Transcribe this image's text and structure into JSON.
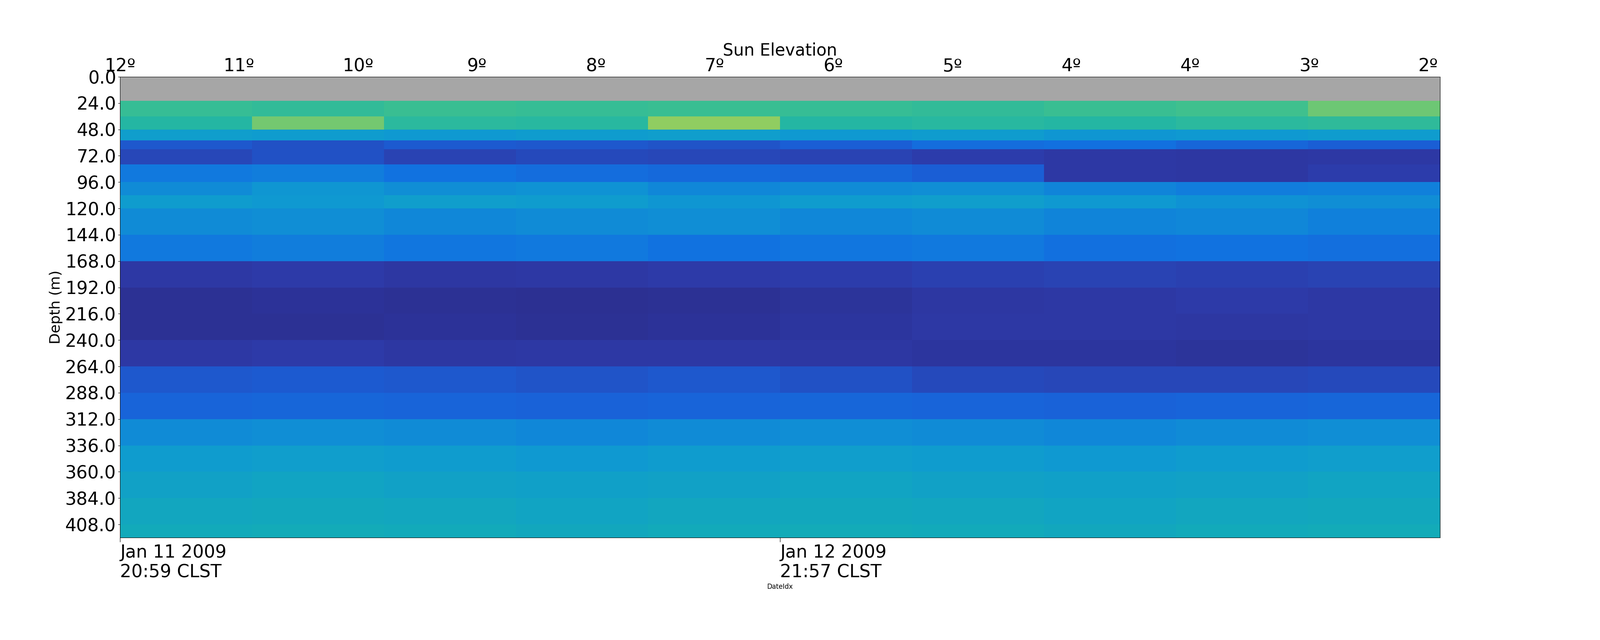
{
  "chart_data": {
    "type": "heatmap",
    "xlabel": "DateIdx",
    "ylabel": "Depth (m)",
    "top_xlabel": "Sun Elevation",
    "xlim": [
      0,
      1110
    ],
    "ylim": [
      420,
      0
    ],
    "xticks": [
      {
        "value": 0,
        "label": "Jan 11 2009\n20:59 CLST"
      },
      {
        "value": 555,
        "label": "Jan 12 2009\n21:57 CLST"
      }
    ],
    "top_xticks": [
      {
        "value": 0,
        "label": "12º"
      },
      {
        "value": 100,
        "label": "11º"
      },
      {
        "value": 200,
        "label": "10º"
      },
      {
        "value": 300,
        "label": "9º"
      },
      {
        "value": 400,
        "label": "8º"
      },
      {
        "value": 500,
        "label": "7º"
      },
      {
        "value": 600,
        "label": "6º"
      },
      {
        "value": 700,
        "label": "5º"
      },
      {
        "value": 800,
        "label": "4º"
      },
      {
        "value": 900,
        "label": "4º"
      },
      {
        "value": 1000,
        "label": "3º"
      },
      {
        "value": 1100,
        "label": "2º"
      }
    ],
    "yticks": [
      0.0,
      24.0,
      48.0,
      72.0,
      96.0,
      120.0,
      144.0,
      168.0,
      192.0,
      216.0,
      240.0,
      264.0,
      288.0,
      312.0,
      336.0,
      360.0,
      384.0,
      408.0
    ],
    "x_edges": [
      0,
      111,
      222,
      333,
      444,
      555,
      666,
      777,
      888,
      999,
      1110
    ],
    "y_edges": [
      0,
      22,
      36,
      48,
      58,
      66,
      80,
      96,
      108,
      120,
      144,
      168,
      192,
      216,
      240,
      264,
      288,
      312,
      336,
      360,
      384,
      408,
      420
    ],
    "color_range": [
      0,
      10
    ],
    "cells": [
      [
        null,
        null,
        null,
        null,
        null,
        null,
        null,
        null,
        null,
        null
      ],
      [
        6.5,
        6.4,
        6.6,
        6.5,
        6.6,
        6.5,
        6.4,
        6.6,
        6.7,
        7.2
      ],
      [
        6.0,
        7.3,
        6.2,
        6.1,
        7.6,
        6.0,
        6.1,
        6.0,
        6.2,
        6.3
      ],
      [
        4.6,
        4.5,
        4.4,
        4.5,
        4.6,
        4.4,
        4.5,
        4.3,
        4.4,
        4.5
      ],
      [
        2.0,
        1.8,
        2.1,
        2.0,
        1.9,
        2.2,
        3.0,
        3.2,
        2.6,
        2.2
      ],
      [
        1.5,
        1.8,
        1.4,
        1.6,
        1.5,
        1.4,
        1.2,
        1.0,
        0.9,
        1.0
      ],
      [
        3.5,
        3.6,
        3.3,
        3.0,
        2.8,
        2.6,
        2.2,
        1.0,
        0.9,
        1.2
      ],
      [
        4.0,
        4.3,
        4.1,
        4.2,
        3.9,
        4.0,
        4.1,
        3.8,
        3.6,
        3.7
      ],
      [
        4.5,
        4.4,
        4.6,
        4.5,
        4.3,
        4.5,
        4.6,
        4.4,
        4.2,
        4.1
      ],
      [
        4.0,
        4.1,
        3.9,
        4.0,
        4.1,
        3.9,
        4.0,
        3.8,
        3.9,
        3.7
      ],
      [
        3.5,
        3.6,
        3.4,
        3.5,
        3.3,
        3.4,
        3.5,
        3.2,
        3.3,
        3.1
      ],
      [
        1.0,
        1.1,
        0.9,
        1.0,
        1.1,
        1.2,
        1.3,
        1.4,
        1.3,
        1.4
      ],
      [
        0.5,
        0.6,
        0.5,
        0.4,
        0.5,
        0.7,
        0.9,
        1.0,
        1.1,
        1.0
      ],
      [
        0.5,
        0.5,
        0.6,
        0.5,
        0.6,
        0.8,
        1.0,
        1.0,
        0.9,
        1.0
      ],
      [
        1.0,
        1.1,
        0.9,
        1.0,
        1.0,
        0.9,
        0.8,
        0.8,
        0.7,
        0.8
      ],
      [
        2.0,
        2.1,
        2.0,
        1.9,
        2.0,
        1.8,
        1.6,
        1.5,
        1.5,
        1.6
      ],
      [
        2.5,
        2.6,
        2.5,
        2.4,
        2.5,
        2.6,
        2.5,
        2.4,
        2.5,
        2.6
      ],
      [
        4.0,
        4.1,
        4.0,
        3.9,
        4.0,
        4.1,
        4.0,
        3.9,
        4.0,
        4.1
      ],
      [
        4.5,
        4.6,
        4.5,
        4.4,
        4.5,
        4.6,
        4.5,
        4.4,
        4.5,
        4.6
      ],
      [
        4.8,
        4.9,
        4.8,
        4.7,
        4.8,
        4.9,
        4.8,
        4.7,
        4.8,
        4.9
      ],
      [
        5.0,
        5.1,
        5.0,
        4.9,
        5.0,
        5.1,
        5.0,
        4.9,
        5.0,
        5.1
      ],
      [
        5.2,
        5.3,
        5.2,
        5.1,
        5.2,
        5.3,
        5.2,
        5.1,
        5.2,
        5.3
      ]
    ]
  }
}
